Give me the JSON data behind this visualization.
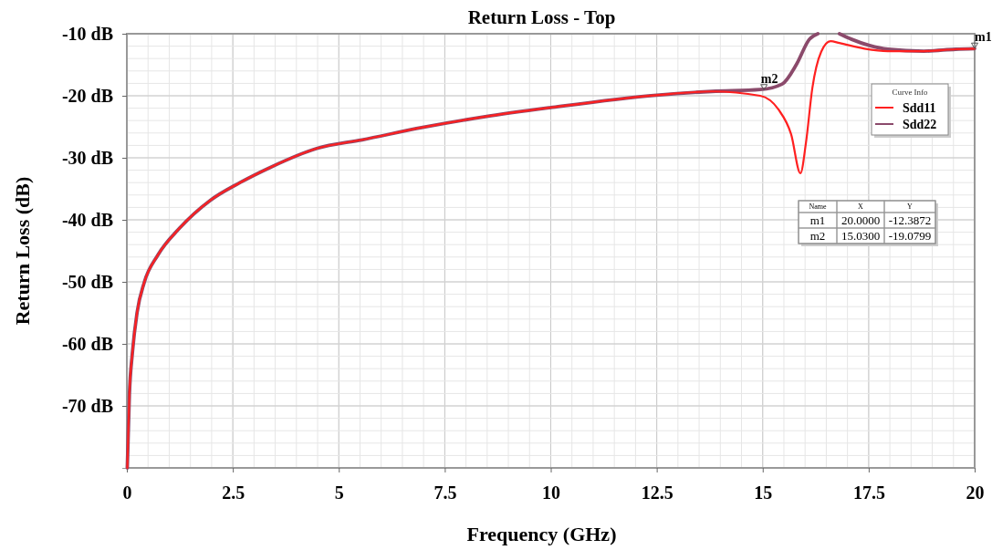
{
  "chart_data": {
    "type": "line",
    "title": "Return Loss - Top",
    "xlabel": "Frequency (GHz)",
    "ylabel": "Return Loss (dB)",
    "legend_title": "Curve Info",
    "xlim": [
      0,
      20
    ],
    "xticks": [
      0,
      2.5,
      5,
      7.5,
      10,
      12.5,
      15,
      17.5,
      20
    ],
    "ylim": [
      -80,
      -10
    ],
    "yticks": [
      {
        "value": -10,
        "label": "-10 dB"
      },
      {
        "value": -20,
        "label": "-20 dB"
      },
      {
        "value": -30,
        "label": "-30 dB"
      },
      {
        "value": -40,
        "label": "-40 dB"
      },
      {
        "value": -50,
        "label": "-50 dB"
      },
      {
        "value": -60,
        "label": "-60 dB"
      },
      {
        "value": -70,
        "label": "-70 dB"
      }
    ],
    "grid": true,
    "legend": "top right",
    "line_style": "solid",
    "marker": "none",
    "series": [
      {
        "name": "Sdd11",
        "color": "#ff2020",
        "x": [
          0.01,
          0.06,
          0.13,
          0.24,
          0.41,
          0.73,
          1.25,
          1.96,
          2.67,
          3.4,
          4.48,
          5.55,
          6.98,
          8.42,
          10,
          12.5,
          13.8,
          14.94,
          15.37,
          15.67,
          15.89,
          16.02,
          16.17,
          16.38,
          16.6,
          16.81,
          17.4,
          17.95,
          18.8,
          19.55,
          20
        ],
        "values": [
          -80,
          -68.2,
          -61.5,
          -55,
          -50.1,
          -45.7,
          -41.3,
          -36.9,
          -34,
          -31.5,
          -28.5,
          -27.1,
          -25.1,
          -23.4,
          -21.9,
          -19.9,
          -19.3,
          -20,
          -22.2,
          -26.2,
          -32.5,
          -27.6,
          -18.8,
          -12.9,
          -11.2,
          -11.5,
          -12.4,
          -12.8,
          -12.8,
          -12.5,
          -12.4
        ]
      },
      {
        "name": "Sdd22",
        "color": "#8b4a6b",
        "x": [
          0.01,
          0.06,
          0.13,
          0.24,
          0.41,
          0.73,
          1.25,
          1.96,
          2.67,
          3.4,
          4.48,
          5.55,
          6.98,
          8.42,
          10,
          12.5,
          13.8,
          14.94,
          15.46,
          15.8,
          16.1,
          16.3,
          16.55,
          16.81,
          17.1,
          17.52,
          17.95,
          18.8,
          19.55,
          20
        ],
        "values": [
          -80,
          -68.2,
          -61.5,
          -55,
          -50.1,
          -45.7,
          -41.3,
          -36.9,
          -34,
          -31.5,
          -28.5,
          -27.1,
          -25.1,
          -23.4,
          -21.9,
          -19.9,
          -19.3,
          -19,
          -18.1,
          -14.9,
          -10.9,
          -10,
          null,
          -10,
          -10.9,
          -11.9,
          -12.5,
          -12.8,
          -12.5,
          -12.4
        ]
      }
    ],
    "annotations": [
      {
        "text": "m1",
        "x": 20,
        "y": -12.3872
      },
      {
        "text": "m2",
        "x": 15.03,
        "y": -19.0799
      },
      "Name",
      "X",
      "Y",
      "m1",
      "20.0000",
      "-12.3872",
      "m2",
      "15.0300",
      "-19.0799"
    ]
  }
}
